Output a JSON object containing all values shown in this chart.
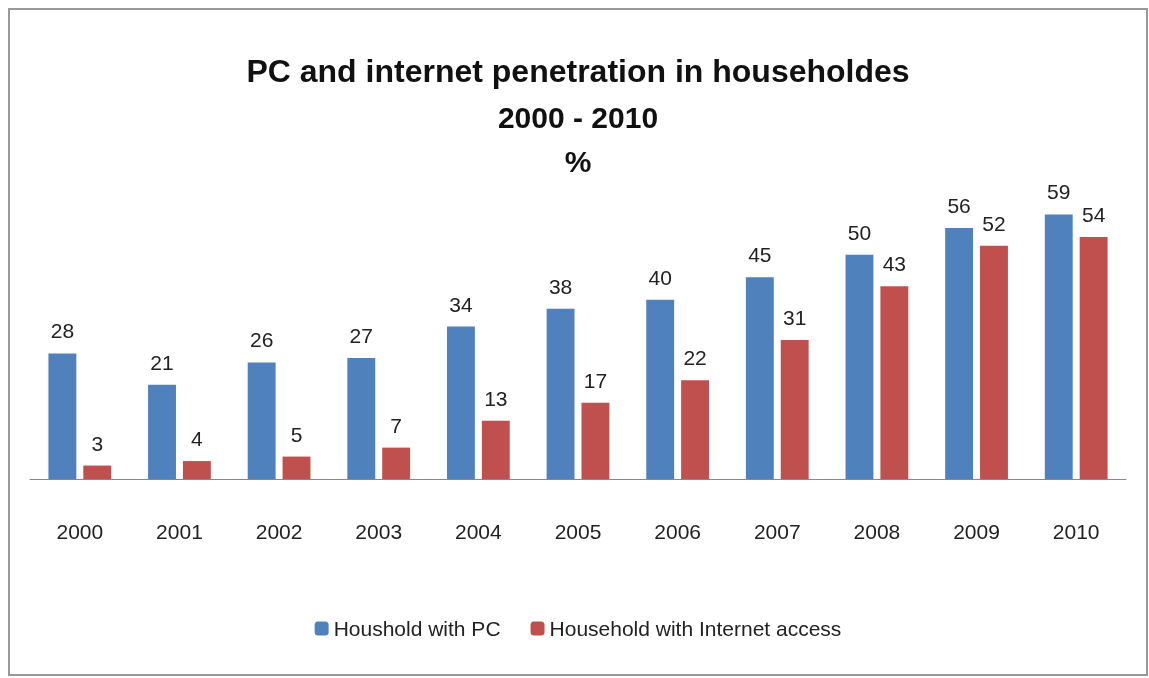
{
  "chart_data": {
    "type": "bar",
    "title": "PC and internet penetration in householdes",
    "subtitle": "2000 - 2010\n%",
    "categories": [
      "2000",
      "2001",
      "2002",
      "2003",
      "2004",
      "2005",
      "2006",
      "2007",
      "2008",
      "2009",
      "2010"
    ],
    "series": [
      {
        "name": "Houshold with PC",
        "color": "#4f81bd",
        "values": [
          28,
          21,
          26,
          27,
          34,
          38,
          40,
          45,
          50,
          56,
          59
        ]
      },
      {
        "name": "Household with Internet access",
        "color": "#c0504d",
        "values": [
          3,
          4,
          5,
          7,
          13,
          17,
          22,
          31,
          43,
          52,
          54
        ]
      }
    ],
    "data_labels": true,
    "legend": "bottom",
    "tick_labels": "x"
  }
}
